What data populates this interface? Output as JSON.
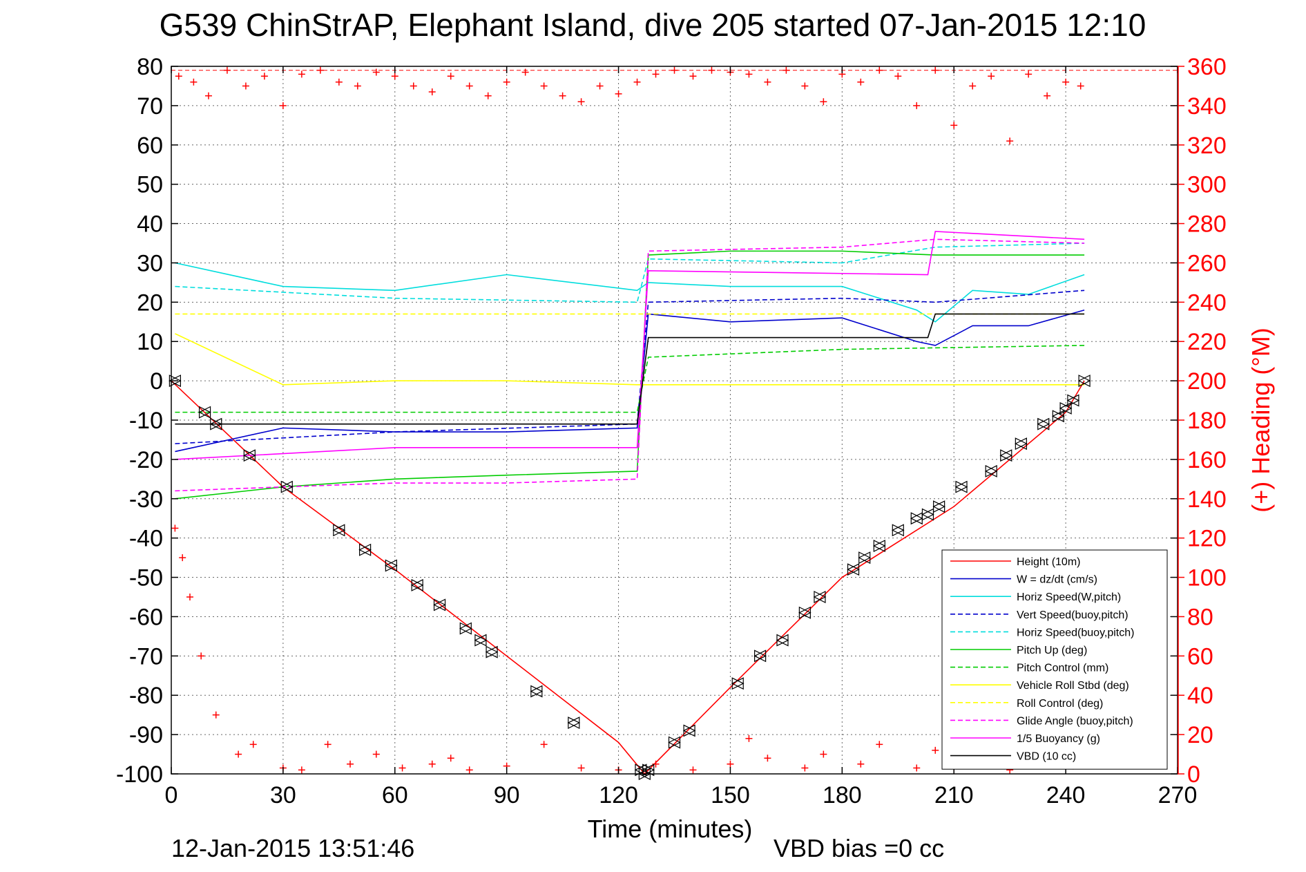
{
  "chart_data": {
    "type": "line",
    "title": "G539 ChinStrAP, Elephant Island, dive 205 started 07-Jan-2015 12:10",
    "xlabel": "Time (minutes)",
    "ylabel_right": "(+) Heading (°M)",
    "xlim": [
      0,
      270
    ],
    "ylim": [
      -100,
      80
    ],
    "ylim_right": [
      0,
      360
    ],
    "x_ticks": [
      "0",
      "30",
      "60",
      "90",
      "120",
      "150",
      "180",
      "210",
      "240",
      "270"
    ],
    "y_ticks": [
      "80",
      "70",
      "60",
      "50",
      "40",
      "30",
      "20",
      "10",
      "0",
      "-10",
      "-20",
      "-30",
      "-40",
      "-50",
      "-60",
      "-70",
      "-80",
      "-90",
      "-100"
    ],
    "y_ticks_right": [
      "360",
      "340",
      "320",
      "300",
      "280",
      "260",
      "240",
      "220",
      "200",
      "180",
      "160",
      "140",
      "120",
      "100",
      "80",
      "60",
      "40",
      "20",
      "0"
    ],
    "grid": true,
    "legend_position": "bottom-right",
    "timestamp": "12-Jan-2015 13:51:46",
    "vbd_bias": "VBD bias =0 cc",
    "series": [
      {
        "name": "Height (10m)",
        "color": "#ff0000",
        "style": "solid",
        "x": [
          0,
          30,
          60,
          90,
          120,
          127,
          150,
          180,
          210,
          240,
          245
        ],
        "y": [
          0,
          -27,
          -48,
          -70,
          -92,
          -100,
          -78,
          -50,
          -32,
          -8,
          0
        ]
      },
      {
        "name": "W = dz/dt (cm/s)",
        "color": "#0000cc",
        "style": "solid",
        "x": [
          1,
          30,
          60,
          90,
          125,
          128,
          150,
          180,
          200,
          205,
          215,
          230,
          245
        ],
        "y": [
          -18,
          -12,
          -13,
          -13,
          -12,
          17,
          15,
          16,
          10,
          9,
          14,
          14,
          18
        ]
      },
      {
        "name": "Horiz Speed(W,pitch)",
        "color": "#00dddd",
        "style": "solid",
        "x": [
          1,
          30,
          60,
          90,
          125,
          128,
          150,
          180,
          200,
          205,
          215,
          230,
          245
        ],
        "y": [
          30,
          24,
          23,
          27,
          23,
          25,
          24,
          24,
          18,
          15,
          23,
          22,
          27
        ]
      },
      {
        "name": "Vert Speed(buoy,pitch)",
        "color": "#0000cc",
        "style": "dashed",
        "x": [
          1,
          60,
          125,
          128,
          180,
          205,
          245
        ],
        "y": [
          -16,
          -13,
          -11,
          20,
          21,
          20,
          23
        ]
      },
      {
        "name": "Horiz Speed(buoy,pitch)",
        "color": "#00dddd",
        "style": "dashed",
        "x": [
          1,
          60,
          125,
          128,
          180,
          205,
          245
        ],
        "y": [
          24,
          21,
          20,
          31,
          30,
          34,
          35
        ]
      },
      {
        "name": "Pitch Up (deg)",
        "color": "#00cc00",
        "style": "solid",
        "x": [
          1,
          30,
          60,
          90,
          125,
          128,
          150,
          180,
          205,
          245
        ],
        "y": [
          -30,
          -27,
          -25,
          -24,
          -23,
          32,
          33,
          33,
          32,
          32
        ]
      },
      {
        "name": "Pitch Control (mm)",
        "color": "#00cc00",
        "style": "dashed",
        "x": [
          1,
          60,
          125,
          128,
          180,
          245
        ],
        "y": [
          -8,
          -8,
          -8,
          6,
          8,
          9
        ]
      },
      {
        "name": "Vehicle Roll Stbd (deg)",
        "color": "#ffff00",
        "style": "solid",
        "x": [
          1,
          30,
          60,
          90,
          125,
          150,
          180,
          210,
          245
        ],
        "y": [
          12,
          -1,
          0,
          0,
          -1,
          -1,
          -1,
          -1,
          -1
        ]
      },
      {
        "name": "Roll Control (deg)",
        "color": "#ffff00",
        "style": "dashed",
        "x": [
          1,
          60,
          125,
          245
        ],
        "y": [
          17,
          17,
          17,
          17
        ]
      },
      {
        "name": "Glide Angle (buoy,pitch)",
        "color": "#ff00ff",
        "style": "dashed",
        "x": [
          1,
          30,
          60,
          90,
          125,
          128,
          180,
          205,
          245
        ],
        "y": [
          -28,
          -27,
          -26,
          -26,
          -25,
          33,
          34,
          36,
          35
        ]
      },
      {
        "name": "1/5 Buoyancy (g)",
        "color": "#ff00ff",
        "style": "solid",
        "x": [
          1,
          60,
          125,
          128,
          203,
          205,
          245
        ],
        "y": [
          -20,
          -17,
          -17,
          28,
          27,
          38,
          36
        ]
      },
      {
        "name": "VBD (10 cc)",
        "color": "#000000",
        "style": "solid",
        "x": [
          1,
          60,
          125,
          128,
          203,
          205,
          245
        ],
        "y": [
          -11,
          -11,
          -11,
          11,
          11,
          17,
          17
        ]
      }
    ],
    "heading_points": {
      "name": "Heading",
      "axis": "right",
      "color": "#ff0000",
      "marker": "+",
      "x": [
        2,
        6,
        10,
        15,
        20,
        25,
        30,
        35,
        40,
        45,
        50,
        55,
        60,
        65,
        70,
        75,
        80,
        85,
        90,
        95,
        100,
        105,
        110,
        115,
        120,
        125,
        130,
        135,
        140,
        145,
        150,
        155,
        160,
        165,
        170,
        175,
        180,
        185,
        190,
        195,
        200,
        205,
        210,
        215,
        220,
        225,
        230,
        235,
        240,
        244
      ],
      "y": [
        355,
        352,
        345,
        358,
        350,
        355,
        340,
        356,
        358,
        352,
        350,
        357,
        355,
        350,
        347,
        355,
        350,
        345,
        352,
        357,
        350,
        345,
        342,
        350,
        346,
        352,
        356,
        358,
        355,
        358,
        357,
        356,
        352,
        358,
        350,
        342,
        356,
        352,
        358,
        355,
        340,
        358,
        330,
        350,
        355,
        322,
        356,
        345,
        352,
        350
      ],
      "x2": [
        1,
        3,
        5,
        8,
        12,
        18,
        22,
        30,
        35,
        42,
        48,
        55,
        62,
        70,
        75,
        80,
        90,
        100,
        110,
        120,
        130,
        140,
        150,
        155,
        160,
        170,
        175,
        185,
        190,
        200,
        205,
        210,
        215,
        225,
        235,
        242
      ],
      "y2": [
        125,
        110,
        90,
        60,
        30,
        10,
        15,
        3,
        2,
        15,
        5,
        10,
        3,
        5,
        8,
        2,
        4,
        15,
        3,
        2,
        5,
        2,
        5,
        18,
        8,
        3,
        10,
        5,
        15,
        3,
        12,
        3,
        5,
        2,
        8,
        4
      ]
    }
  },
  "markers": {
    "name": "Dive profile markers",
    "color": "#000000",
    "x": [
      1,
      9,
      12,
      21,
      31,
      45,
      52,
      59,
      66,
      72,
      79,
      83,
      86,
      98,
      108,
      126,
      127,
      128,
      135,
      139,
      152,
      158,
      164,
      170,
      174,
      183,
      186,
      190,
      195,
      200,
      203,
      206,
      212,
      220,
      224,
      228,
      234,
      238,
      240,
      242,
      245
    ],
    "y": [
      0,
      -8,
      -11,
      -19,
      -27,
      -38,
      -43,
      -47,
      -52,
      -57,
      -63,
      -66,
      -69,
      -79,
      -87,
      -99,
      -100,
      -99,
      -92,
      -89,
      -77,
      -70,
      -66,
      -59,
      -55,
      -48,
      -45,
      -42,
      -38,
      -35,
      -34,
      -32,
      -27,
      -23,
      -19,
      -16,
      -11,
      -9,
      -7,
      -5,
      0
    ]
  }
}
